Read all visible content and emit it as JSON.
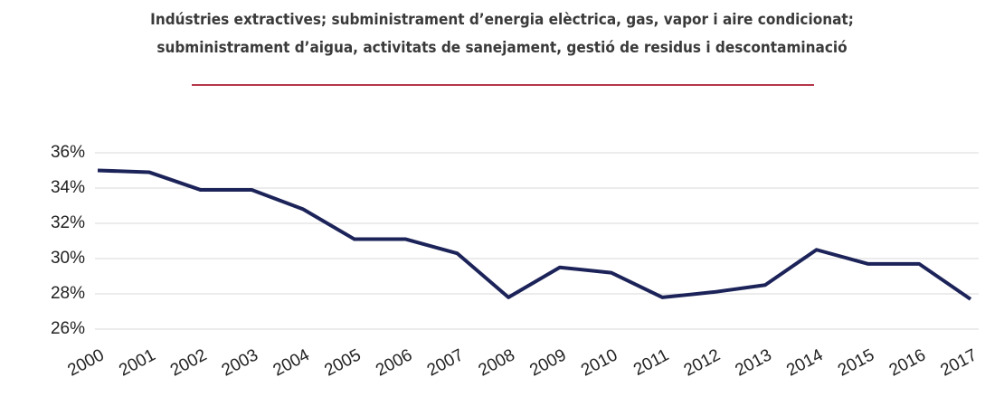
{
  "chart_data": {
    "type": "line",
    "title": [
      "Indústries extractives; subministrament d’energia elèctrica, gas, vapor i aire condicionat;",
      "subministrament d’aigua, activitats de sanejament, gestió de residus i descontaminació"
    ],
    "categories": [
      "2000",
      "2001",
      "2002",
      "2003",
      "2004",
      "2005",
      "2006",
      "2007",
      "2008",
      "2009",
      "2010",
      "2011",
      "2012",
      "2013",
      "2014",
      "2015",
      "2016",
      "2017"
    ],
    "values": [
      35.0,
      34.9,
      33.9,
      33.9,
      32.8,
      31.1,
      31.1,
      30.3,
      27.8,
      29.5,
      29.2,
      27.8,
      28.1,
      28.5,
      30.5,
      29.7,
      29.7,
      27.7
    ],
    "color": "#1c2359",
    "ylim": [
      26,
      36
    ],
    "yticks": [
      {
        "value": 26,
        "label": "26%"
      },
      {
        "value": 28,
        "label": "28%"
      },
      {
        "value": 30,
        "label": "30%"
      },
      {
        "value": 32,
        "label": "32%"
      },
      {
        "value": 34,
        "label": "34%"
      },
      {
        "value": 36,
        "label": "36%"
      }
    ],
    "grid": true
  }
}
